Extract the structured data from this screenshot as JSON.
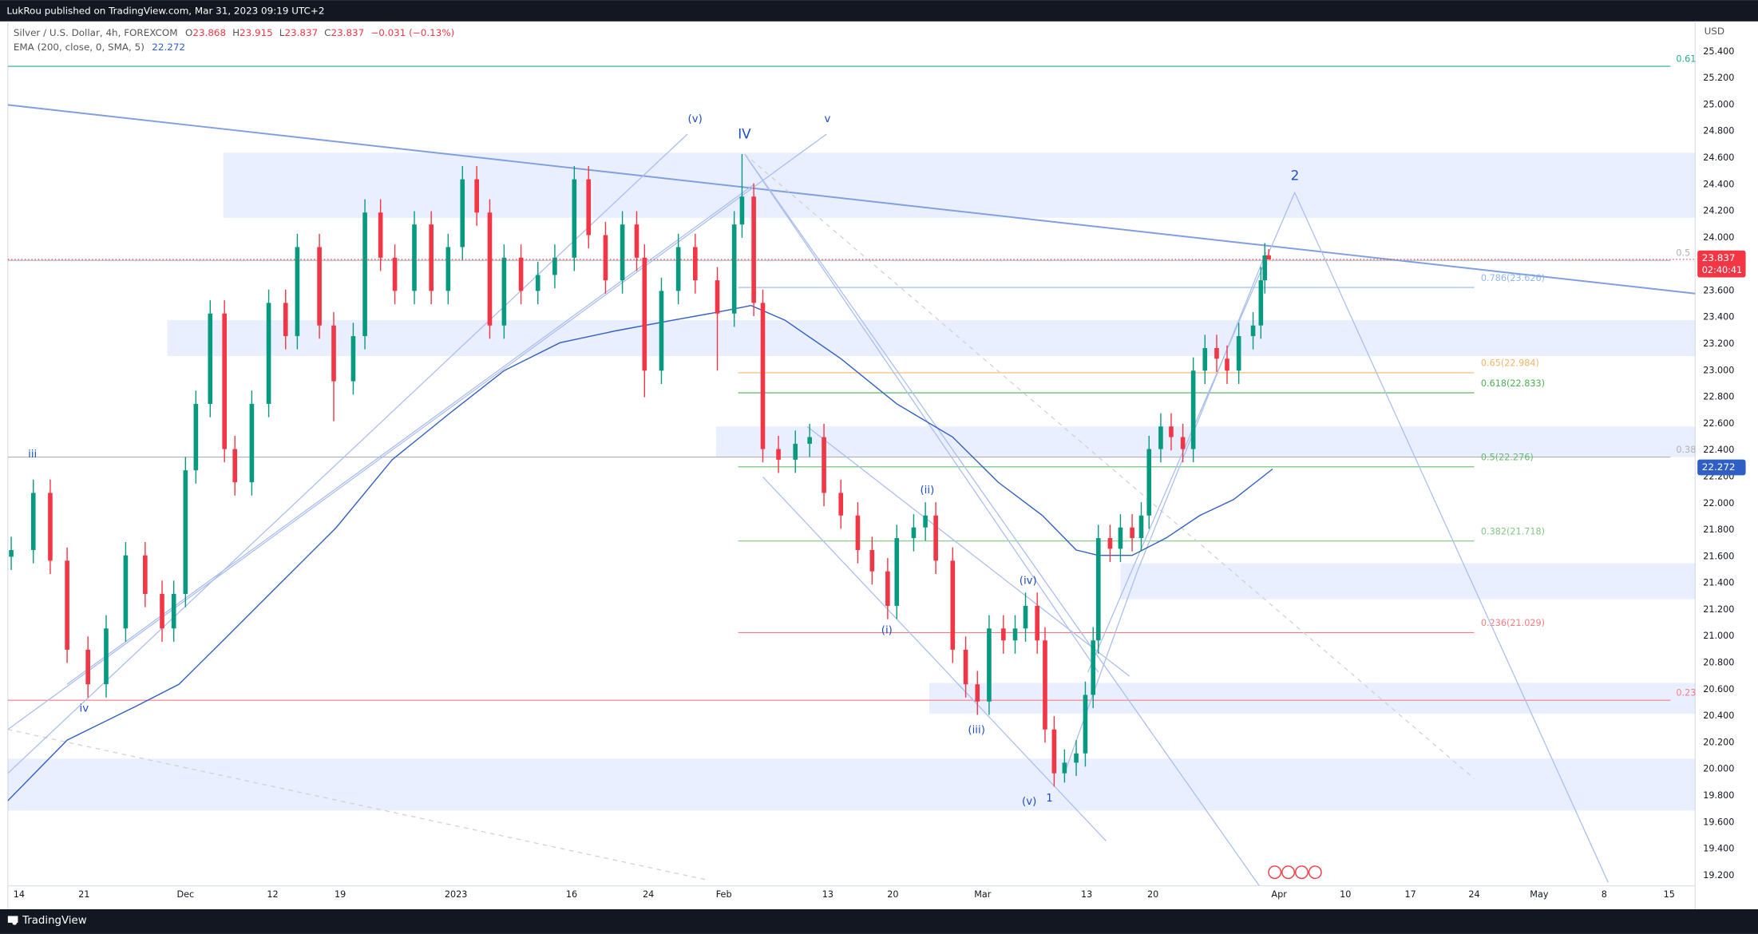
{
  "header": {
    "publisher": "LukRou published on TradingView.com, Mar 31, 2023 09:19 UTC+2",
    "brand": "TradingView"
  },
  "chart_data": {
    "type": "candlestick",
    "title": "Silver / U.S. Dollar, 4h, FOREXCOM",
    "ohlc_legend": [
      {
        "key": "O",
        "value": 23.868
      },
      {
        "key": "H",
        "value": 23.915
      },
      {
        "key": "L",
        "value": 23.837
      },
      {
        "key": "C",
        "value": 23.837
      }
    ],
    "change": "−0.031 (−0.13%)",
    "indicator": "EMA (200, close, 0, SMA, 5)",
    "indicator_value": 22.272,
    "y_unit": "USD",
    "countdown": "02:40:41",
    "up_color": "#089981",
    "down_color": "#f23645",
    "x": [
      -0.6,
      1.1,
      2.4,
      3.7,
      5.3,
      6.7,
      8.2,
      9.7,
      11.0,
      11.9,
      12.8,
      13.6,
      14.7,
      15.8,
      16.6,
      17.9,
      19.2,
      20.5,
      21.4,
      23.1,
      24.2,
      25.7,
      26.6,
      27.8,
      28.9,
      30.4,
      31.7,
      33.0,
      34.1,
      35.2,
      36.2,
      37.3,
      38.6,
      39.9,
      41.2,
      42.7,
      43.8,
      45.1,
      46.4,
      47.5,
      48.1,
      49.4,
      50.7,
      52.0,
      53.7,
      55.0,
      55.6,
      56.5,
      57.2,
      58.4,
      59.7,
      60.8,
      61.9,
      63.2,
      64.5,
      65.6,
      66.8,
      67.5,
      68.8,
      69.7,
      70.5,
      71.8,
      72.8,
      73.7,
      74.6,
      75.7,
      76.6,
      77.4,
      78.3,
      78.9,
      79.6,
      80.4,
      81.3,
      82.0,
      82.6,
      83.0,
      83.9,
      84.7,
      85.6,
      86.3,
      86.9,
      87.8,
      88.6,
      89.5,
      90.3,
      91.2,
      92.1,
      92.9,
      93.8,
      94.9,
      95.5,
      95.8,
      96.1
    ],
    "open": [
      21.6,
      21.65,
      22.08,
      21.57,
      20.9,
      20.64,
      21.06,
      21.61,
      21.32,
      21.06,
      21.32,
      22.25,
      22.75,
      23.43,
      22.41,
      22.16,
      22.75,
      23.51,
      23.26,
      23.93,
      23.34,
      22.92,
      23.26,
      24.19,
      23.85,
      23.6,
      24.1,
      23.6,
      23.93,
      24.44,
      24.19,
      23.34,
      23.85,
      23.6,
      23.72,
      23.85,
      24.44,
      24.02,
      23.68,
      24.1,
      23.85,
      23.0,
      23.6,
      23.93,
      23.68,
      23.43,
      24.1,
      24.31,
      23.51,
      22.41,
      22.33,
      22.45,
      22.5,
      22.08,
      21.91,
      21.65,
      21.49,
      21.23,
      21.74,
      21.82,
      21.91,
      21.57,
      20.9,
      20.64,
      20.51,
      21.06,
      20.97,
      21.06,
      21.23,
      20.97,
      20.3,
      19.97,
      20.05,
      20.12,
      20.56,
      20.97,
      21.74,
      21.66,
      21.82,
      21.74,
      21.91,
      22.41,
      22.58,
      22.5,
      22.41,
      23.0,
      23.17,
      23.09,
      23.0,
      23.26,
      23.34,
      23.68,
      23.868
    ],
    "high": [
      21.75,
      22.18,
      22.18,
      21.67,
      21.0,
      21.16,
      21.71,
      21.71,
      21.42,
      21.42,
      22.35,
      22.85,
      23.53,
      23.53,
      22.51,
      22.85,
      23.61,
      23.61,
      24.03,
      24.03,
      23.44,
      23.36,
      24.29,
      24.29,
      23.95,
      24.2,
      24.2,
      24.03,
      24.54,
      24.54,
      24.29,
      23.95,
      23.95,
      23.82,
      23.95,
      24.54,
      24.54,
      24.12,
      24.2,
      24.2,
      23.95,
      23.7,
      24.03,
      24.03,
      23.78,
      24.2,
      24.63,
      24.41,
      23.61,
      22.51,
      22.55,
      22.6,
      22.6,
      22.18,
      22.01,
      21.75,
      21.59,
      21.84,
      21.92,
      22.01,
      22.01,
      21.67,
      21.0,
      20.74,
      21.16,
      21.16,
      21.16,
      21.33,
      21.33,
      21.07,
      20.4,
      20.15,
      20.22,
      20.66,
      21.07,
      21.84,
      21.84,
      21.92,
      21.92,
      22.01,
      22.51,
      22.68,
      22.68,
      22.6,
      23.1,
      23.27,
      23.27,
      23.19,
      23.36,
      23.44,
      23.78,
      23.96,
      23.915
    ],
    "low": [
      21.5,
      21.55,
      21.47,
      20.8,
      20.54,
      20.54,
      20.96,
      21.22,
      20.96,
      20.96,
      21.22,
      22.15,
      22.65,
      22.31,
      22.06,
      22.06,
      22.65,
      23.16,
      23.16,
      23.24,
      22.62,
      22.82,
      23.16,
      23.75,
      23.5,
      23.5,
      23.5,
      23.5,
      23.83,
      24.09,
      23.24,
      23.24,
      23.5,
      23.5,
      23.62,
      23.75,
      23.92,
      23.58,
      23.58,
      23.75,
      22.8,
      22.9,
      23.5,
      23.58,
      23.0,
      23.33,
      24.0,
      23.41,
      22.31,
      22.23,
      22.23,
      22.35,
      21.98,
      21.81,
      21.55,
      21.39,
      21.13,
      21.13,
      21.64,
      21.72,
      21.47,
      20.8,
      20.54,
      20.41,
      20.41,
      20.87,
      20.87,
      20.96,
      20.87,
      20.2,
      19.87,
      19.9,
      19.95,
      20.02,
      20.46,
      20.87,
      21.56,
      21.56,
      21.64,
      21.64,
      21.81,
      22.31,
      22.4,
      22.31,
      22.31,
      22.9,
      22.99,
      22.9,
      22.9,
      23.16,
      23.24,
      23.58,
      23.837
    ],
    "close": [
      21.65,
      22.08,
      21.57,
      20.9,
      20.64,
      21.06,
      21.61,
      21.32,
      21.06,
      21.32,
      22.25,
      22.75,
      23.43,
      22.41,
      22.16,
      22.75,
      23.51,
      23.26,
      23.93,
      23.34,
      22.92,
      23.26,
      24.19,
      23.85,
      23.6,
      24.1,
      23.6,
      23.93,
      24.44,
      24.19,
      23.34,
      23.85,
      23.6,
      23.72,
      23.85,
      24.44,
      24.02,
      23.68,
      24.1,
      23.85,
      23.0,
      23.6,
      23.93,
      23.68,
      23.43,
      24.1,
      24.31,
      23.51,
      22.41,
      22.33,
      22.45,
      22.5,
      22.08,
      21.91,
      21.65,
      21.49,
      21.23,
      21.74,
      21.82,
      21.91,
      21.57,
      20.9,
      20.64,
      20.51,
      21.06,
      20.97,
      21.06,
      21.23,
      20.97,
      20.3,
      19.97,
      20.05,
      20.12,
      20.56,
      20.97,
      21.74,
      21.66,
      21.82,
      21.74,
      21.91,
      22.41,
      22.58,
      22.5,
      22.41,
      23.0,
      23.17,
      23.09,
      23.0,
      23.26,
      23.34,
      23.68,
      23.868,
      23.837
    ],
    "ema": {
      "color": "#2f5fc4",
      "x": [
        -0.9,
        3.7,
        8.9,
        12.3,
        15.8,
        20.1,
        24.4,
        28.7,
        33.0,
        37.3,
        41.6,
        45.9,
        50.3,
        53.7,
        56.3,
        58.9,
        63.2,
        67.5,
        71.8,
        75.3,
        78.7,
        81.3,
        83.0,
        85.6,
        88.2,
        90.8,
        93.4,
        96.4
      ],
      "values": [
        19.76,
        20.22,
        20.47,
        20.64,
        20.98,
        21.4,
        21.82,
        22.33,
        22.67,
        23.0,
        23.21,
        23.3,
        23.38,
        23.44,
        23.49,
        23.38,
        23.09,
        22.75,
        22.5,
        22.16,
        21.91,
        21.65,
        21.61,
        21.61,
        21.74,
        21.91,
        22.03,
        22.26
      ]
    },
    "zones": [
      {
        "x": [
          15.7,
          128.9
        ],
        "y": [
          24.15,
          24.64
        ]
      },
      {
        "x": [
          11.4,
          128.9
        ],
        "y": [
          23.11,
          23.38
        ]
      },
      {
        "x": [
          53.6,
          128.9
        ],
        "y": [
          22.35,
          22.58
        ]
      },
      {
        "x": [
          84.7,
          128.9
        ],
        "y": [
          21.28,
          21.55
        ]
      },
      {
        "x": [
          70.0,
          128.9
        ],
        "y": [
          20.42,
          20.65
        ]
      },
      {
        "x": [
          -0.86,
          128.9
        ],
        "y": [
          19.69,
          20.08
        ]
      }
    ],
    "fib_x": [
      55.3,
      111.9
    ],
    "fib_levels": [
      {
        "value": 23.626,
        "label": "0.786(23.626)",
        "color": "#90b8f0"
      },
      {
        "value": 22.984,
        "label": "0.65(22.984)",
        "color": "#f5b36b"
      },
      {
        "value": 22.833,
        "label": "0.618(22.833)",
        "color": "#4caf50"
      },
      {
        "value": 22.276,
        "label": "0.5(22.276)",
        "color": "#66bb6a"
      },
      {
        "value": 21.718,
        "label": "0.382(21.718)",
        "color": "#81c784"
      },
      {
        "value": 21.029,
        "label": "0.236(21.029)",
        "color": "#f77c80"
      }
    ],
    "outer_fib_x": [
      -0.86,
      127.0
    ],
    "outer_fib_levels": [
      {
        "value": 25.29,
        "label": "0.61",
        "color": "#22ab94"
      },
      {
        "value": 23.83,
        "label": "0.5",
        "color": "#b0b0b0"
      },
      {
        "value": 22.35,
        "label": "0.38",
        "color": "#b0b0b0"
      },
      {
        "value": 20.52,
        "label": "0.23",
        "color": "#f77c80"
      }
    ],
    "trendlines": [
      {
        "x": [
          -0.86,
          128.9
        ],
        "y": [
          25.0,
          23.58
        ],
        "color": "#7f9fe3",
        "dash": false
      },
      {
        "x": [
          55.8,
          83.0
        ],
        "y": [
          24.63,
          20.73
        ],
        "color": "#a9bdf0",
        "dash": false
      },
      {
        "x": [
          55.8,
          95.4
        ],
        "y": [
          24.63,
          19.12
        ],
        "color": "#a9bdf0",
        "dash": false
      },
      {
        "x": [
          60.6,
          85.4
        ],
        "y": [
          22.58,
          20.7
        ],
        "color": "#a9bdf0",
        "dash": false
      },
      {
        "x": [
          57.2,
          83.6
        ],
        "y": [
          22.2,
          19.46
        ],
        "color": "#a9bdf0",
        "dash": false
      },
      {
        "x": [
          55.8,
          111.9
        ],
        "y": [
          24.63,
          19.93
        ],
        "color": "#d0d0d0",
        "dash": true
      },
      {
        "x": [
          -0.86,
          52.8
        ],
        "y": [
          20.3,
          19.17
        ],
        "color": "#d0d0d0",
        "dash": true
      },
      {
        "x": [
          -0.86,
          51.4
        ],
        "y": [
          19.97,
          24.78
        ],
        "color": "#a9bdf0",
        "dash": false
      },
      {
        "x": [
          -0.86,
          62.1
        ],
        "y": [
          20.3,
          24.78
        ],
        "color": "#a9bdf0",
        "dash": false
      },
      {
        "x": [
          3.7,
          56.5
        ],
        "y": [
          20.64,
          24.4
        ],
        "color": "#a9bdf0",
        "dash": false
      },
      {
        "x": [
          82.2,
          98.1,
          122.2
        ],
        "y": [
          20.73,
          24.34,
          19.15
        ],
        "color": "#a9bdf0",
        "dash": false
      },
      {
        "x": [
          80.4,
          86.0,
          95.9
        ],
        "y": [
          19.97,
          21.49,
          23.89
        ],
        "color": "#a9bdf0",
        "dash": false
      }
    ],
    "wave_labels": [
      "iii",
      "iv",
      "(v)",
      "IV",
      "v",
      "(ii)",
      "(i)",
      "(iv)",
      "(iii)",
      "(v)",
      "1",
      "2"
    ],
    "xlim": [
      -0.86,
      128.9
    ],
    "ylim": [
      19.124,
      25.62
    ],
    "xticks": [
      {
        "value": 0,
        "label": "14"
      },
      {
        "value": 5,
        "label": "21"
      },
      {
        "value": 12.8,
        "label": "Dec"
      },
      {
        "value": 19.5,
        "label": "12"
      },
      {
        "value": 24.7,
        "label": "19"
      },
      {
        "value": 33.6,
        "label": "2023"
      },
      {
        "value": 42.5,
        "label": "16"
      },
      {
        "value": 48.4,
        "label": "24"
      },
      {
        "value": 54.2,
        "label": "Feb"
      },
      {
        "value": 62.2,
        "label": "13"
      },
      {
        "value": 67.2,
        "label": "20"
      },
      {
        "value": 74.1,
        "label": "Mar"
      },
      {
        "value": 82.1,
        "label": "13"
      },
      {
        "value": 87.2,
        "label": "20"
      },
      {
        "value": 96.9,
        "label": "Apr"
      },
      {
        "value": 102,
        "label": "10"
      },
      {
        "value": 107,
        "label": "17"
      },
      {
        "value": 111.9,
        "label": "24"
      },
      {
        "value": 116.9,
        "label": "May"
      },
      {
        "value": 121.9,
        "label": "8"
      },
      {
        "value": 126.9,
        "label": "15"
      }
    ],
    "yticks": [
      {
        "value": 19.2,
        "label": "19.200"
      },
      {
        "value": 19.4,
        "label": "19.400"
      },
      {
        "value": 19.6,
        "label": "19.600"
      },
      {
        "value": 19.8,
        "label": "19.800"
      },
      {
        "value": 20.0,
        "label": "20.000"
      },
      {
        "value": 20.2,
        "label": "20.200"
      },
      {
        "value": 20.4,
        "label": "20.400"
      },
      {
        "value": 20.6,
        "label": "20.600"
      },
      {
        "value": 20.8,
        "label": "20.800"
      },
      {
        "value": 21.0,
        "label": "21.000"
      },
      {
        "value": 21.2,
        "label": "21.200"
      },
      {
        "value": 21.4,
        "label": "21.400"
      },
      {
        "value": 21.6,
        "label": "21.600"
      },
      {
        "value": 21.8,
        "label": "21.800"
      },
      {
        "value": 22.0,
        "label": "22.000"
      },
      {
        "value": 22.2,
        "label": "22.200"
      },
      {
        "value": 22.4,
        "label": "22.400"
      },
      {
        "value": 22.6,
        "label": "22.600"
      },
      {
        "value": 22.8,
        "label": "22.800"
      },
      {
        "value": 23.0,
        "label": "23.000"
      },
      {
        "value": 23.2,
        "label": "23.200"
      },
      {
        "value": 23.4,
        "label": "23.400"
      },
      {
        "value": 23.6,
        "label": "23.600"
      },
      {
        "value": 23.8,
        "label": "23.800"
      },
      {
        "value": 24.0,
        "label": "24.000"
      },
      {
        "value": 24.2,
        "label": "24.200"
      },
      {
        "value": 24.4,
        "label": "24.400"
      },
      {
        "value": 24.6,
        "label": "24.600"
      },
      {
        "value": 24.8,
        "label": "24.800"
      },
      {
        "value": 25.0,
        "label": "25.000"
      },
      {
        "value": 25.2,
        "label": "25.200"
      },
      {
        "value": 25.4,
        "label": "25.400"
      }
    ]
  }
}
